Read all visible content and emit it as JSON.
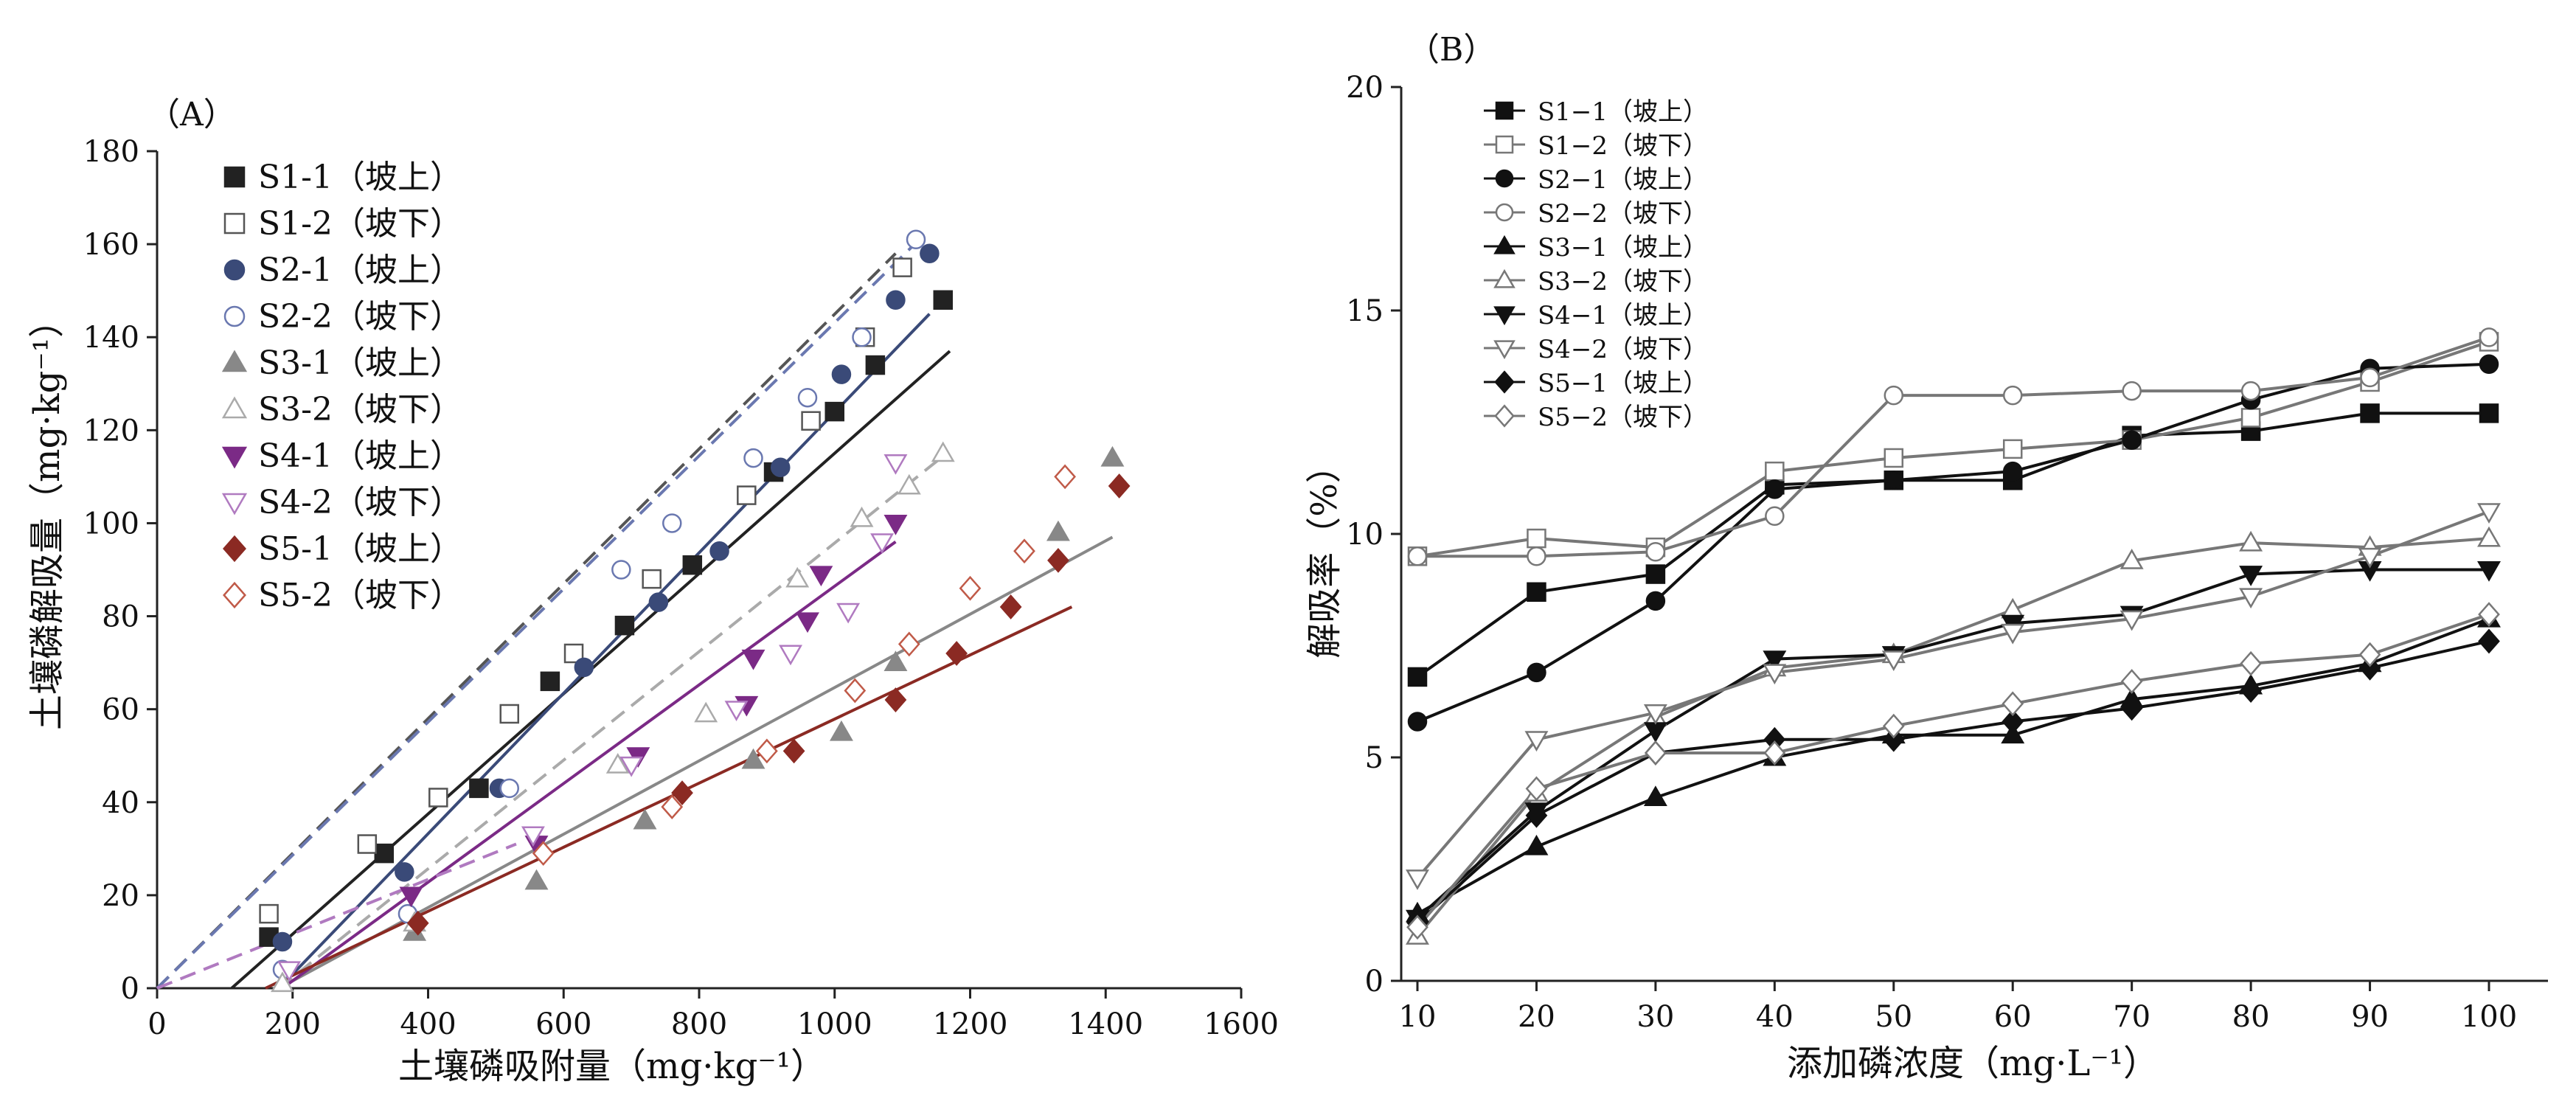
{
  "chart_data": [
    {
      "panel_label": "（A）",
      "type": "scatter",
      "xlabel": "土壤磷吸附量（mg·kg⁻¹）",
      "ylabel": "土壤磷解吸量（mg·kg⁻¹）",
      "xlim": [
        0,
        1600
      ],
      "ylim": [
        0,
        180
      ],
      "x_ticks": [
        "0",
        "200",
        "400",
        "600",
        "800",
        "1000",
        "1200",
        "1400",
        "1600"
      ],
      "y_ticks": [
        "0",
        "20",
        "40",
        "60",
        "80",
        "100",
        "120",
        "140",
        "160",
        "180"
      ],
      "legend_position": "top-left",
      "series": [
        {
          "name": "S1-1（坡上）",
          "marker": "square",
          "fill": "filled",
          "color": "#222222",
          "line_style": "solid",
          "points": [
            [
              165,
              11
            ],
            [
              335,
              29
            ],
            [
              475,
              43
            ],
            [
              580,
              66
            ],
            [
              690,
              78
            ],
            [
              790,
              91
            ],
            [
              910,
              111
            ],
            [
              1000,
              124
            ],
            [
              1060,
              134
            ],
            [
              1160,
              148
            ]
          ],
          "fit": [
            [
              110,
              0
            ],
            [
              1170,
              137
            ]
          ]
        },
        {
          "name": "S1-2（坡下）",
          "marker": "square",
          "fill": "open",
          "color": "#555555",
          "line_style": "dashed",
          "points": [
            [
              165,
              16
            ],
            [
              310,
              31
            ],
            [
              415,
              41
            ],
            [
              520,
              59
            ],
            [
              615,
              72
            ],
            [
              730,
              88
            ],
            [
              870,
              106
            ],
            [
              965,
              122
            ],
            [
              1045,
              140
            ],
            [
              1100,
              155
            ]
          ],
          "fit": [
            [
              0,
              0
            ],
            [
              1090,
              158
            ]
          ]
        },
        {
          "name": "S2-1（坡上）",
          "marker": "circle",
          "fill": "filled",
          "color": "#3a4a78",
          "line_style": "solid",
          "points": [
            [
              185,
              10
            ],
            [
              365,
              25
            ],
            [
              505,
              43
            ],
            [
              630,
              69
            ],
            [
              740,
              83
            ],
            [
              830,
              94
            ],
            [
              920,
              112
            ],
            [
              1010,
              132
            ],
            [
              1090,
              148
            ],
            [
              1140,
              158
            ]
          ],
          "fit": [
            [
              180,
              0
            ],
            [
              1140,
              145
            ]
          ]
        },
        {
          "name": "S2-2（坡下）",
          "marker": "circle",
          "fill": "open",
          "color": "#6a78b0",
          "line_style": "dashed",
          "points": [
            [
              185,
              4
            ],
            [
              370,
              16
            ],
            [
              520,
              43
            ],
            [
              685,
              90
            ],
            [
              760,
              100
            ],
            [
              880,
              114
            ],
            [
              960,
              127
            ],
            [
              1040,
              140
            ],
            [
              1120,
              161
            ]
          ],
          "fit": [
            [
              0,
              0
            ],
            [
              1125,
              161
            ]
          ]
        },
        {
          "name": "S3-1（坡上）",
          "marker": "triangle-up",
          "fill": "filled",
          "color": "#888888",
          "line_style": "solid",
          "points": [
            [
              380,
              12
            ],
            [
              560,
              23
            ],
            [
              720,
              36
            ],
            [
              880,
              49
            ],
            [
              1010,
              55
            ],
            [
              1090,
              70
            ],
            [
              1330,
              98
            ],
            [
              1410,
              114
            ]
          ],
          "fit": [
            [
              180,
              0
            ],
            [
              1410,
              97
            ]
          ]
        },
        {
          "name": "S3-2（坡下）",
          "marker": "triangle-up",
          "fill": "open",
          "color": "#aaaaaa",
          "line_style": "dashed",
          "points": [
            [
              185,
              1
            ],
            [
              380,
              14
            ],
            [
              680,
              48
            ],
            [
              810,
              59
            ],
            [
              945,
              88
            ],
            [
              1040,
              101
            ],
            [
              1110,
              108
            ],
            [
              1160,
              115
            ]
          ],
          "fit": [
            [
              180,
              0
            ],
            [
              1165,
              115
            ]
          ]
        },
        {
          "name": "S4-1（坡上）",
          "marker": "triangle-down",
          "fill": "filled",
          "color": "#7b2a86",
          "line_style": "solid",
          "points": [
            [
              375,
              20
            ],
            [
              560,
              31
            ],
            [
              710,
              50
            ],
            [
              870,
              61
            ],
            [
              880,
              71
            ],
            [
              960,
              79
            ],
            [
              980,
              89
            ],
            [
              1090,
              100
            ]
          ],
          "fit": [
            [
              185,
              0
            ],
            [
              1090,
              96
            ]
          ]
        },
        {
          "name": "S4-2（坡下）",
          "marker": "triangle-down",
          "fill": "open",
          "color": "#b07ac0",
          "line_style": "dashed",
          "points": [
            [
              195,
              4
            ],
            [
              555,
              33
            ],
            [
              700,
              48
            ],
            [
              855,
              60
            ],
            [
              935,
              72
            ],
            [
              1020,
              81
            ],
            [
              1070,
              96
            ],
            [
              1090,
              113
            ]
          ],
          "fit": [
            [
              0,
              0
            ],
            [
              530,
              31
            ]
          ]
        },
        {
          "name": "S5-1（坡上）",
          "marker": "diamond",
          "fill": "filled",
          "color": "#8b2a23",
          "line_style": "solid",
          "points": [
            [
              385,
              14
            ],
            [
              775,
              42
            ],
            [
              940,
              51
            ],
            [
              1090,
              62
            ],
            [
              1180,
              72
            ],
            [
              1260,
              82
            ],
            [
              1330,
              92
            ],
            [
              1420,
              108
            ]
          ],
          "fit": [
            [
              160,
              0
            ],
            [
              1350,
              82
            ]
          ]
        },
        {
          "name": "S5-2（坡下）",
          "marker": "diamond",
          "fill": "open",
          "color": "#c05a48",
          "line_style": "dashed",
          "points": [
            [
              570,
              29
            ],
            [
              760,
              39
            ],
            [
              900,
              51
            ],
            [
              1030,
              64
            ],
            [
              1110,
              74
            ],
            [
              1200,
              86
            ],
            [
              1280,
              94
            ],
            [
              1340,
              110
            ]
          ],
          "fit": []
        }
      ]
    },
    {
      "panel_label": "（B）",
      "type": "line",
      "xlabel": "添加磷浓度（mg·L⁻¹）",
      "ylabel": "解吸率（%）",
      "xlim": [
        10,
        100
      ],
      "ylim": [
        0,
        20
      ],
      "x": [
        10,
        20,
        30,
        40,
        50,
        60,
        70,
        80,
        90,
        100
      ],
      "x_ticks": [
        "10",
        "20",
        "30",
        "40",
        "50",
        "60",
        "70",
        "80",
        "90",
        "100"
      ],
      "y_ticks": [
        "0",
        "5",
        "10",
        "15",
        "20"
      ],
      "legend_position": "top-left",
      "series": [
        {
          "name": "S1−1（坡上）",
          "marker": "square",
          "fill": "filled",
          "color": "#111111",
          "values": [
            6.8,
            8.7,
            9.1,
            11.1,
            11.2,
            11.2,
            12.2,
            12.3,
            12.7,
            12.7
          ]
        },
        {
          "name": "S1−2（坡下）",
          "marker": "square",
          "fill": "open",
          "color": "#777777",
          "values": [
            9.5,
            9.9,
            9.7,
            11.4,
            11.7,
            11.9,
            12.1,
            12.6,
            13.4,
            14.3
          ]
        },
        {
          "name": "S2−1（坡上）",
          "marker": "circle",
          "fill": "filled",
          "color": "#111111",
          "values": [
            5.8,
            6.9,
            8.5,
            11.0,
            11.2,
            11.4,
            12.1,
            13.0,
            13.7,
            13.8
          ]
        },
        {
          "name": "S2−2（坡下）",
          "marker": "circle",
          "fill": "open",
          "color": "#777777",
          "values": [
            9.5,
            9.5,
            9.6,
            10.4,
            13.1,
            13.1,
            13.2,
            13.2,
            13.5,
            14.4
          ]
        },
        {
          "name": "S3−1（坡上）",
          "marker": "triangle-up",
          "fill": "filled",
          "color": "#111111",
          "values": [
            1.5,
            3.0,
            4.1,
            5.0,
            5.5,
            5.5,
            6.3,
            6.6,
            7.1,
            8.1
          ]
        },
        {
          "name": "S3−2（坡下）",
          "marker": "triangle-up",
          "fill": "open",
          "color": "#777777",
          "values": [
            1.0,
            4.2,
            5.9,
            7.0,
            7.3,
            8.3,
            9.4,
            9.8,
            9.7,
            9.9
          ]
        },
        {
          "name": "S4−1（坡上）",
          "marker": "triangle-down",
          "fill": "filled",
          "color": "#111111",
          "values": [
            1.4,
            3.8,
            5.6,
            7.2,
            7.3,
            8.0,
            8.2,
            9.1,
            9.2,
            9.2
          ]
        },
        {
          "name": "S4−2（坡下）",
          "marker": "triangle-down",
          "fill": "open",
          "color": "#777777",
          "values": [
            2.3,
            5.4,
            6.0,
            6.9,
            7.2,
            7.8,
            8.1,
            8.6,
            9.5,
            10.5
          ]
        },
        {
          "name": "S5−1（坡上）",
          "marker": "diamond",
          "fill": "filled",
          "color": "#111111",
          "values": [
            1.3,
            3.7,
            5.1,
            5.4,
            5.4,
            5.8,
            6.1,
            6.5,
            7.0,
            7.6
          ]
        },
        {
          "name": "S5−2（坡下）",
          "marker": "diamond",
          "fill": "open",
          "color": "#777777",
          "values": [
            1.2,
            4.3,
            5.1,
            5.1,
            5.7,
            6.2,
            6.7,
            7.1,
            7.3,
            8.2
          ]
        }
      ]
    }
  ]
}
